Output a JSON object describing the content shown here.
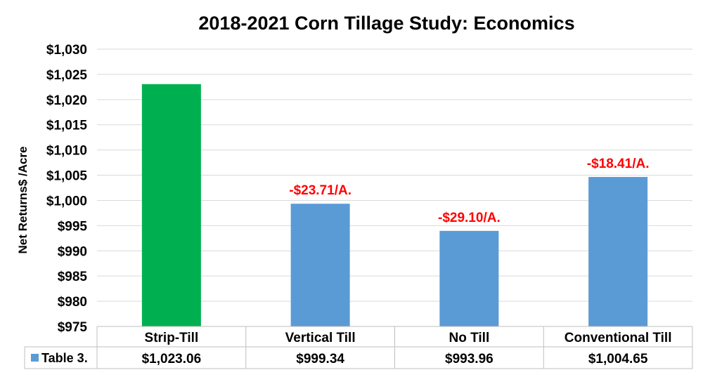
{
  "chart_data": {
    "type": "bar",
    "title": "2018-2021 Corn Tillage Study: Economics",
    "ylabel": "Net Returns$ /Acre",
    "xlabel": "",
    "ylim": [
      975,
      1030
    ],
    "yticks": [
      975,
      980,
      985,
      990,
      995,
      1000,
      1005,
      1010,
      1015,
      1020,
      1025,
      1030
    ],
    "ytick_labels": [
      "$975",
      "$980",
      "$985",
      "$990",
      "$995",
      "$1,000",
      "$1,005",
      "$1,010",
      "$1,015",
      "$1,020",
      "$1,025",
      "$1,030"
    ],
    "grid": true,
    "categories": [
      "Strip-Till",
      "Vertical Till",
      "No Till",
      "Conventional Till"
    ],
    "series": [
      {
        "name": "Table 3.",
        "values": [
          1023.06,
          999.34,
          993.96,
          1004.65
        ],
        "value_labels": [
          "$1,023.06",
          "$999.34",
          "$993.96",
          "$1,004.65"
        ],
        "colors": [
          "#00b050",
          "#5b9bd5",
          "#5b9bd5",
          "#5b9bd5"
        ]
      }
    ],
    "annotations": [
      "",
      "-$23.71/A.",
      "-$29.10/A.",
      "-$18.41/A."
    ],
    "annotation_color": "#ff0000",
    "legend_marker_color": "#5b9bd5",
    "data_table": true
  }
}
